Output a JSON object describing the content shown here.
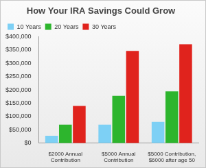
{
  "chart_data": {
    "type": "bar",
    "title": "How Your IRA Savings Could Grow",
    "categories": [
      [
        "$2000 Annual",
        "Contribution"
      ],
      [
        "$5000 Annual",
        "Contribution"
      ],
      [
        "$5000 Contribution,",
        "$6000 after age 50"
      ]
    ],
    "series": [
      {
        "name": "10 Years",
        "color": "#7dd0f5",
        "values": [
          28000,
          70000,
          80000
        ]
      },
      {
        "name": "20 Years",
        "color": "#2db52d",
        "values": [
          70000,
          178000,
          195000
        ]
      },
      {
        "name": "30 Years",
        "color": "#e0231d",
        "values": [
          140000,
          347000,
          372000
        ]
      }
    ],
    "ylim": [
      0,
      400000
    ],
    "yticks": [
      {
        "value": 0,
        "label": "$0"
      },
      {
        "value": 50000,
        "label": "$50,000"
      },
      {
        "value": 100000,
        "label": "$100,000"
      },
      {
        "value": 150000,
        "label": "$150,000"
      },
      {
        "value": 200000,
        "label": "$200,000"
      },
      {
        "value": 250000,
        "label": "$250,000"
      },
      {
        "value": 300000,
        "label": "$300,000"
      },
      {
        "value": 350000,
        "label": "$350,000"
      },
      {
        "value": 400000,
        "label": "$400,000"
      }
    ],
    "grid": false,
    "legend": "top-left"
  }
}
